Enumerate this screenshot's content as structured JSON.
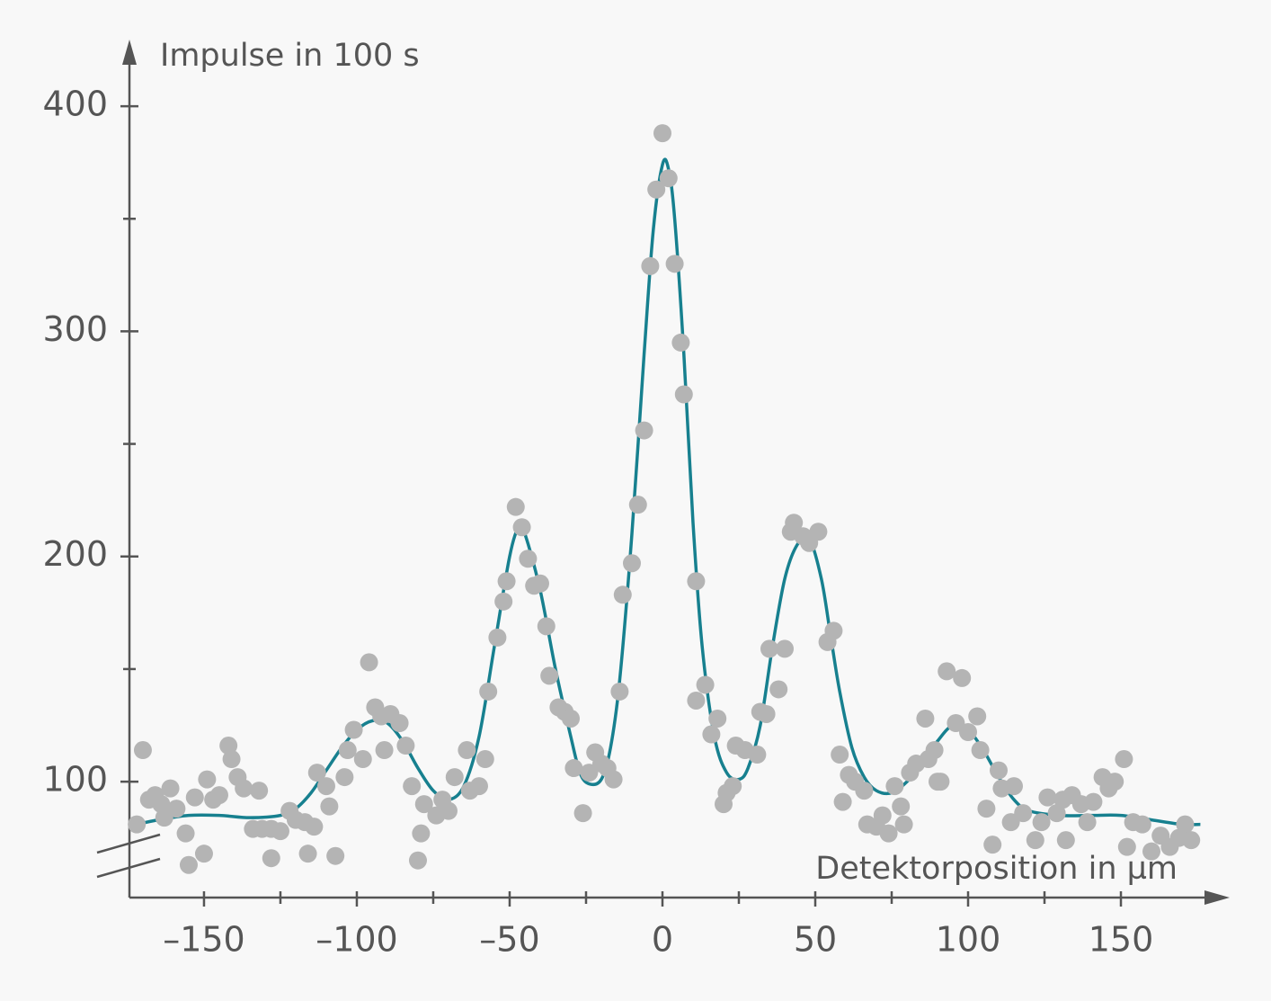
{
  "chart_data": {
    "type": "scatter",
    "ylabel": "Impulse in 100 s",
    "xlabel": "Detektorposition in µm",
    "xlim": [
      -174.4,
      184.7
    ],
    "ylim": [
      48.5,
      427.2
    ],
    "xticks": [
      {
        "value": -150,
        "label": "–150"
      },
      {
        "value": -100,
        "label": "–100"
      },
      {
        "value": -50,
        "label": "–50"
      },
      0,
      50,
      100,
      150
    ],
    "xminorticks": [
      -125,
      -75,
      -25,
      25,
      75,
      125
    ],
    "yticks": [
      100,
      200,
      300,
      400
    ],
    "yminorticks": [
      150,
      250,
      350
    ],
    "axis_break": true,
    "series": [
      {
        "type": "scatter",
        "color": "#b4b4b4",
        "x": [
          -172,
          -170,
          -168,
          -166,
          -164,
          -163,
          -161,
          -159,
          -156,
          -155,
          -153,
          -150,
          -149,
          -147,
          -145,
          -142,
          -141,
          -139,
          -137,
          -134,
          -132,
          -131,
          -128,
          -128,
          -125,
          -122,
          -120,
          -117,
          -116,
          -114,
          -113,
          -110,
          -109,
          -107,
          -104,
          -103,
          -101,
          -98,
          -96,
          -94,
          -92,
          -91,
          -89,
          -86,
          -84,
          -82,
          -80,
          -79,
          -78,
          -74,
          -72,
          -70,
          -68,
          -64,
          -63,
          -60,
          -58,
          -57,
          -54,
          -52,
          -51,
          -48,
          -46,
          -44,
          -42,
          -40,
          -38,
          -37,
          -34,
          -32,
          -30,
          -29,
          -26,
          -24,
          -22,
          -20,
          -18,
          -16,
          -14,
          -13,
          -10,
          -8,
          -6,
          -4,
          -2,
          0,
          2,
          4,
          6,
          7,
          11,
          11,
          14,
          16,
          18,
          20,
          21,
          23,
          24,
          27,
          31,
          32,
          34,
          35,
          38,
          40,
          42,
          43,
          46,
          48,
          51,
          54,
          56,
          58,
          59,
          61,
          63,
          66,
          67,
          70,
          72,
          74,
          76,
          78,
          79,
          81,
          83,
          86,
          87,
          89,
          90,
          91,
          93,
          96,
          98,
          100,
          103,
          104,
          106,
          108,
          110,
          111,
          114,
          115,
          118,
          122,
          124,
          126,
          129,
          131,
          132,
          134,
          137,
          139,
          141,
          144,
          146,
          148,
          151,
          152,
          154,
          157,
          160,
          163,
          166,
          169,
          171,
          173
        ],
        "values": [
          81,
          114,
          92,
          94,
          90,
          84,
          97,
          88,
          77,
          63,
          93,
          68,
          101,
          92,
          94,
          116,
          110,
          102,
          97,
          79,
          96,
          79,
          79,
          66,
          78,
          87,
          83,
          82,
          68,
          80,
          104,
          98,
          89,
          67,
          102,
          114,
          123,
          110,
          153,
          133,
          129,
          114,
          130,
          126,
          116,
          98,
          65,
          77,
          90,
          85,
          92,
          87,
          102,
          114,
          96,
          98,
          110,
          140,
          164,
          180,
          189,
          222,
          213,
          199,
          187,
          188,
          169,
          147,
          133,
          131,
          128,
          106,
          86,
          104,
          113,
          108,
          106,
          101,
          140,
          183,
          197,
          223,
          256,
          329,
          363,
          388,
          368,
          330,
          295,
          272,
          189,
          136,
          143,
          121,
          128,
          90,
          95,
          98,
          116,
          114,
          112,
          131,
          130,
          159,
          141,
          159,
          211,
          215,
          209,
          206,
          211,
          162,
          167,
          112,
          91,
          103,
          100,
          96,
          81,
          80,
          85,
          77,
          98,
          89,
          81,
          104,
          108,
          128,
          110,
          114,
          100,
          100,
          149,
          126,
          146,
          122,
          129,
          114,
          88,
          72,
          105,
          97,
          82,
          98,
          86,
          74,
          82,
          93,
          86,
          92,
          74,
          94,
          90,
          82,
          91,
          102,
          97,
          100,
          110,
          71,
          82,
          81,
          69,
          76,
          71,
          75,
          81,
          74
        ]
      },
      {
        "type": "line",
        "color": "#17808f",
        "x": [
          -172,
          -165,
          -155,
          -145,
          -135,
          -125,
          -120,
          -115,
          -110,
          -105,
          -100,
          -95,
          -90,
          -85,
          -80,
          -75,
          -70,
          -65,
          -60,
          -55,
          -50,
          -47,
          -45,
          -40,
          -35,
          -30,
          -27,
          -24,
          -20,
          -17,
          -14,
          -10,
          -6,
          -3,
          0,
          2,
          4,
          7,
          10,
          13,
          17,
          21,
          25,
          28,
          32,
          36,
          40,
          44,
          48,
          52,
          55,
          58,
          62,
          66,
          70,
          75,
          80,
          85,
          90,
          95,
          100,
          105,
          110,
          115,
          120,
          130,
          140,
          150,
          160,
          170,
          176
        ],
        "values": [
          81,
          83,
          85,
          85,
          84,
          85,
          88,
          95,
          105,
          115,
          123,
          127,
          126,
          118,
          106,
          96,
          92,
          98,
          120,
          160,
          200,
          213,
          210,
          185,
          150,
          120,
          104,
          99,
          101,
          115,
          145,
          210,
          290,
          345,
          374,
          372,
          350,
          290,
          215,
          160,
          120,
          104,
          101,
          106,
          125,
          160,
          190,
          205,
          208,
          190,
          165,
          140,
          115,
          102,
          96,
          95,
          100,
          108,
          118,
          125,
          123,
          114,
          102,
          92,
          87,
          85,
          85,
          85,
          83,
          81,
          81
        ]
      }
    ]
  }
}
